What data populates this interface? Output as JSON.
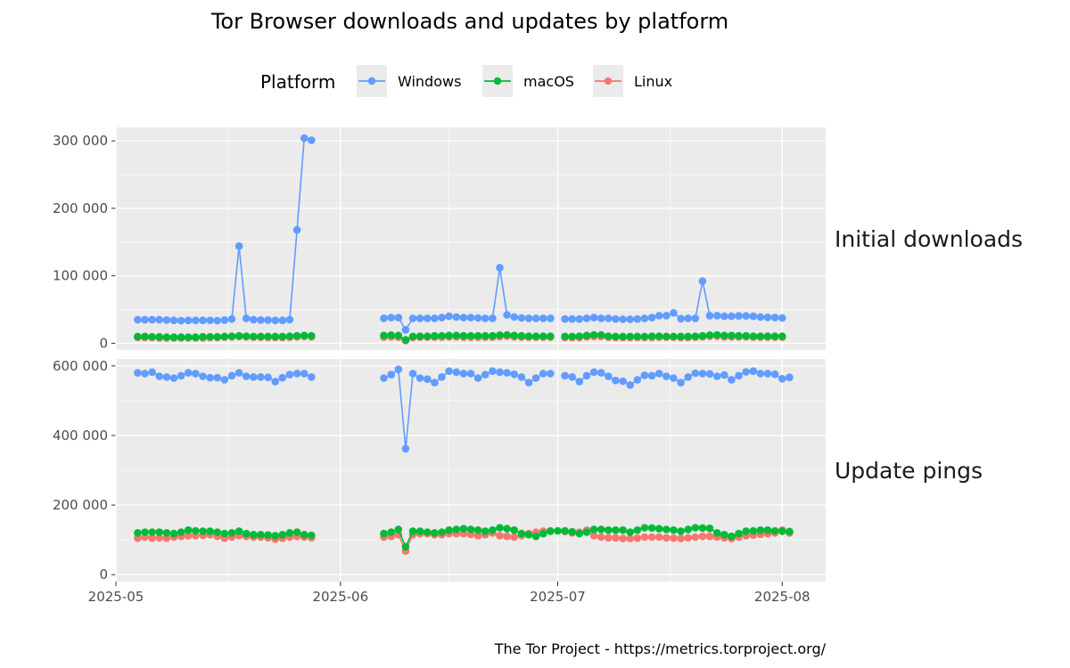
{
  "chart_data": {
    "type": "line",
    "title": "Tor Browser downloads and updates by platform",
    "caption": "The Tor Project - https://metrics.torproject.org/",
    "legend": {
      "title": "Platform",
      "position": "top",
      "entries": [
        {
          "name": "Windows",
          "color": "#619cff"
        },
        {
          "name": "macOS",
          "color": "#00ba38"
        },
        {
          "name": "Linux",
          "color": "#f8766d"
        }
      ]
    },
    "x_axis": {
      "type": "date",
      "range": [
        "2025-05-01",
        "2025-08-07"
      ],
      "tick_labels": [
        "2025-05",
        "2025-06",
        "2025-07",
        "2025-08"
      ],
      "tick_values": [
        "2025-05-01",
        "2025-06-01",
        "2025-07-01",
        "2025-08-01"
      ]
    },
    "grid": true,
    "facets": [
      {
        "label": "Initial downloads",
        "ylim": [
          -10000,
          320000
        ],
        "y_ticks": [
          0,
          100000,
          200000,
          300000
        ],
        "y_tick_labels": [
          "0",
          "100 000",
          "200 000",
          "300 000"
        ],
        "series": [
          {
            "name": "Windows",
            "segments": [
              {
                "start": "2025-05-04",
                "values": [
                  35000,
                  35000,
                  35000,
                  35000,
                  34500,
                  34000,
                  33500,
                  34000,
                  34000,
                  34000,
                  34000,
                  33500,
                  34500,
                  36000,
                  144000,
                  37000,
                  35000,
                  34500,
                  34500,
                  34000,
                  34000,
                  35000,
                  168000,
                  304000,
                  301000
                ]
              },
              {
                "start": "2025-06-07",
                "values": [
                  37000,
                  38000,
                  38000,
                  20000,
                  37000,
                  37000,
                  37000,
                  37000,
                  38000,
                  40000,
                  39000,
                  38000,
                  38000,
                  37500,
                  37000,
                  37000,
                  112000,
                  42000,
                  39000,
                  37500,
                  37000,
                  37000,
                  37000,
                  37000
                ]
              },
              {
                "start": "2025-07-02",
                "values": [
                  36000,
                  36000,
                  36000,
                  37000,
                  38000,
                  37000,
                  37000,
                  36000,
                  35500,
                  35500,
                  36000,
                  37000,
                  38000,
                  41000,
                  41000,
                  45000,
                  36500,
                  37000,
                  37000,
                  92000,
                  41000,
                  41000,
                  40000,
                  40000,
                  40500,
                  40500,
                  40000,
                  39000,
                  38500,
                  38000,
                  37500
                ]
              }
            ]
          },
          {
            "name": "macOS",
            "segments": [
              {
                "start": "2025-05-04",
                "values": [
                  10000,
                  10000,
                  9500,
                  9500,
                  9000,
                  9000,
                  9000,
                  9000,
                  9000,
                  9500,
                  9500,
                  9500,
                  10000,
                  10500,
                  11000,
                  10500,
                  10000,
                  10000,
                  10000,
                  10000,
                  10000,
                  10500,
                  11000,
                  11500,
                  11000
                ]
              },
              {
                "start": "2025-06-07",
                "values": [
                  11500,
                  12000,
                  11500,
                  5000,
                  10000,
                  10500,
                  10500,
                  11000,
                  11000,
                  11500,
                  11500,
                  11000,
                  11000,
                  11000,
                  11000,
                  11000,
                  12000,
                  12500,
                  11500,
                  11000,
                  10500,
                  10500,
                  10500,
                  10500
                ]
              },
              {
                "start": "2025-07-02",
                "values": [
                  10000,
                  10000,
                  10500,
                  11500,
                  12500,
                  12500,
                  10500,
                  10000,
                  10000,
                  10000,
                  10000,
                  10000,
                  10500,
                  10500,
                  10000,
                  10000,
                  10000,
                  10000,
                  10500,
                  11000,
                  12000,
                  12500,
                  11500,
                  11500,
                  11000,
                  11000,
                  10500,
                  10500,
                  10500,
                  10500,
                  10500
                ]
              }
            ]
          },
          {
            "name": "Linux",
            "segments": [
              {
                "start": "2025-05-04",
                "values": [
                  8500,
                  8500,
                  8500,
                  8000,
                  8000,
                  8000,
                  8000,
                  8000,
                  8000,
                  8000,
                  8500,
                  8500,
                  9000,
                  9500,
                  10000,
                  9500,
                  9000,
                  9000,
                  8500,
                  8500,
                  8500,
                  9000,
                  9500,
                  10000,
                  9500
                ]
              },
              {
                "start": "2025-06-07",
                "values": [
                  9000,
                  9500,
                  9000,
                  4000,
                  8500,
                  9000,
                  9000,
                  9000,
                  9000,
                  9500,
                  9500,
                  9000,
                  9000,
                  9000,
                  9000,
                  9000,
                  10000,
                  10500,
                  9500,
                  9000,
                  9000,
                  9000,
                  9000,
                  9000
                ]
              },
              {
                "start": "2025-07-02",
                "values": [
                  8500,
                  8500,
                  8500,
                  9500,
                  10000,
                  10000,
                  9000,
                  8500,
                  8500,
                  8500,
                  8500,
                  8500,
                  8500,
                  9000,
                  9000,
                  9000,
                  8500,
                  8500,
                  9000,
                  9500,
                  10500,
                  10500,
                  9500,
                  9500,
                  9500,
                  9500,
                  9000,
                  9000,
                  9000,
                  9000,
                  9000
                ]
              }
            ]
          }
        ]
      },
      {
        "label": "Update pings",
        "ylim": [
          -20000,
          620000
        ],
        "y_ticks": [
          0,
          200000,
          400000,
          600000
        ],
        "y_tick_labels": [
          "0",
          "200 000",
          "400 000",
          "600 000"
        ],
        "series": [
          {
            "name": "Windows",
            "segments": [
              {
                "start": "2025-05-04",
                "values": [
                  580000,
                  578000,
                  582000,
                  570000,
                  568000,
                  565000,
                  572000,
                  580000,
                  578000,
                  570000,
                  566000,
                  566000,
                  560000,
                  572000,
                  580000,
                  570000,
                  568000,
                  568000,
                  567000,
                  555000,
                  566000,
                  575000,
                  578000,
                  578000,
                  568000
                ]
              },
              {
                "start": "2025-06-07",
                "values": [
                  565000,
                  575000,
                  590000,
                  362000,
                  578000,
                  565000,
                  562000,
                  552000,
                  568000,
                  585000,
                  582000,
                  578000,
                  578000,
                  565000,
                  575000,
                  585000,
                  582000,
                  580000,
                  576000,
                  568000,
                  552000,
                  565000,
                  578000,
                  578000
                ]
              },
              {
                "start": "2025-07-02",
                "values": [
                  572000,
                  568000,
                  555000,
                  572000,
                  582000,
                  580000,
                  570000,
                  558000,
                  556000,
                  545000,
                  560000,
                  573000,
                  572000,
                  578000,
                  570000,
                  565000,
                  552000,
                  568000,
                  579000,
                  578000,
                  577000,
                  570000,
                  574000,
                  560000,
                  572000,
                  583000,
                  585000,
                  578000,
                  578000,
                  576000,
                  563000,
                  567000
                ]
              }
            ]
          },
          {
            "name": "macOS",
            "segments": [
              {
                "start": "2025-05-04",
                "values": [
                  120000,
                  122000,
                  122000,
                  122000,
                  120000,
                  118000,
                  122000,
                  128000,
                  126000,
                  125000,
                  125000,
                  122000,
                  118000,
                  120000,
                  125000,
                  118000,
                  115000,
                  115000,
                  114000,
                  112000,
                  115000,
                  120000,
                  122000,
                  115000,
                  113000
                ]
              },
              {
                "start": "2025-06-07",
                "values": [
                  118000,
                  122000,
                  130000,
                  80000,
                  125000,
                  125000,
                  122000,
                  120000,
                  122000,
                  128000,
                  130000,
                  132000,
                  130000,
                  128000,
                  125000,
                  128000,
                  135000,
                  132000,
                  128000,
                  118000,
                  115000,
                  110000,
                  118000,
                  125000,
                  126000
                ]
              },
              {
                "start": "2025-07-02",
                "values": [
                  126000,
                  123000,
                  118000,
                  122000,
                  130000,
                  130000,
                  128000,
                  128000,
                  128000,
                  122000,
                  128000,
                  135000,
                  134000,
                  132000,
                  130000,
                  128000,
                  125000,
                  130000,
                  135000,
                  134000,
                  133000,
                  120000,
                  115000,
                  110000,
                  118000,
                  125000,
                  126000,
                  128000,
                  128000,
                  126000,
                  125000,
                  124000
                ]
              }
            ]
          },
          {
            "name": "Linux",
            "segments": [
              {
                "start": "2025-05-04",
                "values": [
                  105000,
                  108000,
                  105000,
                  106000,
                  105000,
                  108000,
                  110000,
                  112000,
                  112000,
                  113000,
                  115000,
                  110000,
                  105000,
                  108000,
                  112000,
                  110000,
                  108000,
                  108000,
                  106000,
                  102000,
                  105000,
                  108000,
                  110000,
                  108000,
                  106000
                ]
              },
              {
                "start": "2025-06-07",
                "values": [
                  108000,
                  110000,
                  115000,
                  68000,
                  115000,
                  118000,
                  118000,
                  115000,
                  115000,
                  118000,
                  118000,
                  118000,
                  116000,
                  112000,
                  115000,
                  120000,
                  112000,
                  110000,
                  108000,
                  112000,
                  118000,
                  122000,
                  125000,
                  126000
                ]
              },
              {
                "start": "2025-07-02",
                "values": [
                  124000,
                  120000,
                  122000,
                  128000,
                  112000,
                  108000,
                  106000,
                  106000,
                  104000,
                  104000,
                  105000,
                  108000,
                  108000,
                  108000,
                  106000,
                  105000,
                  104000,
                  106000,
                  108000,
                  110000,
                  110000,
                  108000,
                  106000,
                  104000,
                  108000,
                  112000,
                  114000,
                  116000,
                  118000,
                  120000,
                  128000,
                  120000
                ]
              }
            ]
          }
        ]
      }
    ]
  }
}
